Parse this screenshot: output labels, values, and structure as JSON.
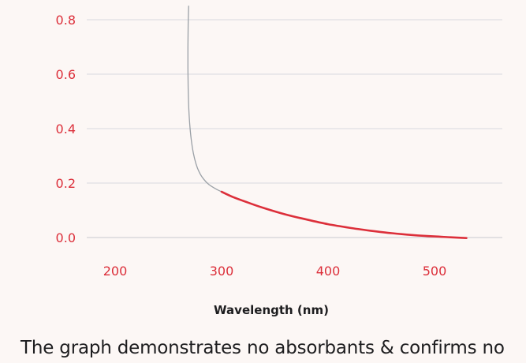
{
  "chart_data": {
    "type": "line",
    "xlabel": "Wavelength (nm)",
    "ylabel": "",
    "title": "",
    "xlim": [
      170,
      565
    ],
    "ylim": [
      -0.01,
      0.81
    ],
    "xticks": [
      "200",
      "300",
      "400",
      "500"
    ],
    "yticks": [
      "0.0",
      "0.2",
      "0.4",
      "0.6",
      "0.8"
    ],
    "grid": true,
    "series": [
      {
        "style": "gray-extrapolated",
        "color": "#9aa0a6",
        "x": [
          269,
          268.6,
          268.4,
          268.4,
          268.6,
          269.1,
          270,
          271.5,
          273.5,
          276,
          279,
          283,
          288,
          294,
          300
        ],
        "y": [
          0.85,
          0.78,
          0.7,
          0.62,
          0.55,
          0.48,
          0.42,
          0.36,
          0.31,
          0.27,
          0.24,
          0.215,
          0.195,
          0.18,
          0.168
        ]
      },
      {
        "style": "measured",
        "color": "#dc2f3a",
        "x": [
          300,
          310,
          325,
          340,
          360,
          380,
          400,
          420,
          440,
          460,
          480,
          500,
          515,
          530
        ],
        "y": [
          0.168,
          0.15,
          0.128,
          0.108,
          0.085,
          0.066,
          0.049,
          0.036,
          0.025,
          0.016,
          0.009,
          0.004,
          0.001,
          -0.002
        ]
      }
    ]
  },
  "caption": {
    "line1": "The graph demonstrates no absorbants & confirms no",
    "line2": ""
  },
  "colors": {
    "background": "#fcf7f5",
    "tick_text": "#dc2f3a",
    "gridline": "#d9d9de",
    "axis_title": "#1d1d1f"
  }
}
